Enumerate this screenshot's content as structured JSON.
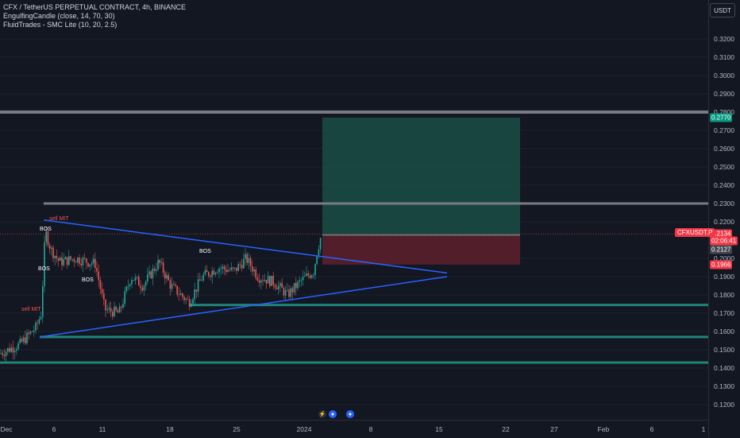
{
  "legend": {
    "symbol_line": "CFX / TetherUS PERPETUAL CONTRACT, 4h, BINANCE",
    "indicator1": "EngulfingCandle (close, 14, 70, 30)",
    "indicator2": "FluidTrades - SMC Lite  (10, 20, 2.5)"
  },
  "currency_button": "USDT",
  "symbol_badge": "CFXUSDT.P",
  "price_axis": {
    "labels": [
      "0.3200",
      "0.3100",
      "0.3000",
      "0.2900",
      "0.2800",
      "0.2700",
      "0.2600",
      "0.2500",
      "0.2400",
      "0.2300",
      "0.2200",
      "0.2000",
      "0.1900",
      "0.1800",
      "0.1700",
      "0.1600",
      "0.1500",
      "0.1400",
      "0.1300",
      "0.1200"
    ],
    "tags": [
      {
        "text": "0.2770",
        "bg": "#089981",
        "color": "#ffffff",
        "price": 0.277
      },
      {
        "text": "0.2134",
        "bg": "#f23645",
        "color": "#ffffff",
        "price": 0.2134
      },
      {
        "text": "02:06:41",
        "bg": "#f23645",
        "color": "#ffffff",
        "price": 0.2094
      },
      {
        "text": "0.2127",
        "bg": "#434651",
        "color": "#ffffff",
        "price": 0.205
      },
      {
        "text": "0.1966",
        "bg": "#f23645",
        "color": "#ffffff",
        "price": 0.1966
      }
    ]
  },
  "time_axis": [
    "Dec",
    "6",
    "11",
    "18",
    "25",
    "2024",
    "8",
    "15",
    "22",
    "27",
    "Feb",
    "6",
    "1"
  ],
  "chart_labels": {
    "bos_1": "BOS",
    "bos_2": "BOS",
    "bos_3": "BOS",
    "bos_4": "BOS",
    "sell_mit_1": "sell MIT",
    "sell_mit_2": "sell MIT"
  },
  "colors": {
    "background": "#131722",
    "up": "#26a69a",
    "down": "#ef5350",
    "trendline": "#2962ff",
    "zone_gray": "#9598a1",
    "zone_teal": "#1e8577",
    "profit_zone": "#1b4a44",
    "loss_zone": "#5a1f2a"
  },
  "chart_data": {
    "type": "candlestick",
    "timeframe": "4h",
    "y_range": [
      0.112,
      0.33
    ],
    "levels": [
      0.28,
      0.23,
      0.1745,
      0.157,
      0.143
    ],
    "trendlines": [
      {
        "from": [
          "Dec 5",
          0.221
        ],
        "to": [
          "Jan 15",
          0.192
        ]
      },
      {
        "from": [
          "Dec 4",
          0.157
        ],
        "to": [
          "Jan 15",
          0.19
        ]
      }
    ],
    "position": {
      "entry": 0.2127,
      "target": 0.277,
      "stop": 0.1966
    },
    "last_price": 0.2134,
    "countdown": "02:06:41"
  }
}
